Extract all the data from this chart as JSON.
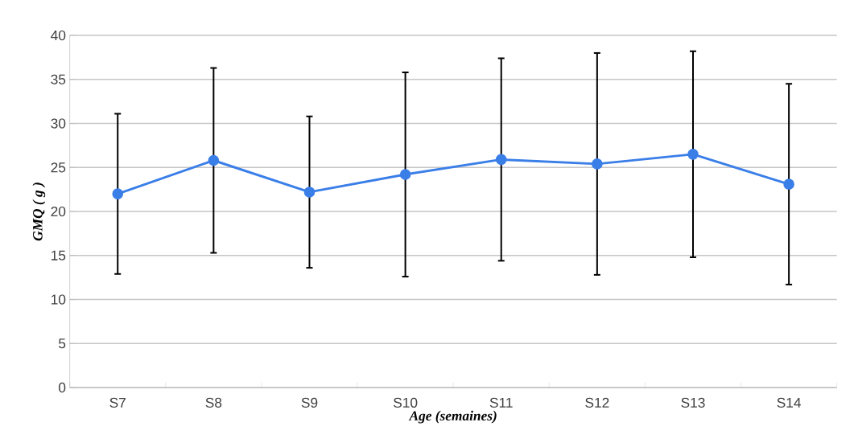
{
  "chart_data": {
    "type": "line",
    "xlabel": "Age (semaines)",
    "ylabel": "GMQ ( g )",
    "categories": [
      "S7",
      "S8",
      "S9",
      "S10",
      "S11",
      "S12",
      "S13",
      "S14"
    ],
    "values": [
      22.0,
      25.8,
      22.2,
      24.2,
      25.9,
      25.4,
      26.5,
      23.1
    ],
    "errors": [
      9.1,
      10.5,
      8.6,
      11.6,
      11.5,
      12.6,
      11.7,
      11.4
    ],
    "color": "#3a7ee8",
    "marker": "circle",
    "line_style": "solid",
    "ylim": [
      0,
      40
    ],
    "yticks": [
      0,
      5,
      10,
      15,
      20,
      25,
      30,
      35,
      40
    ],
    "grid": "y"
  }
}
